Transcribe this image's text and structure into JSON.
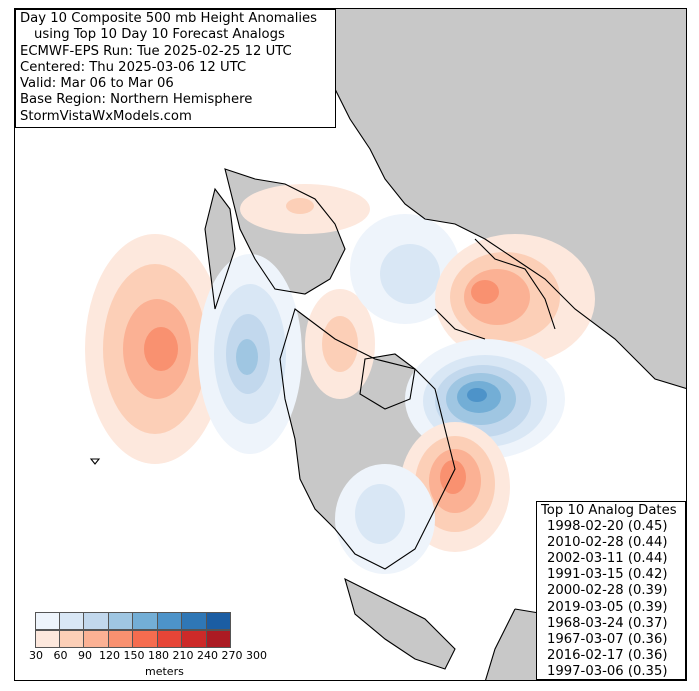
{
  "title": {
    "lines": [
      "Day 10 Composite 500 mb Height Anomalies",
      "using Top 10 Day 10 Forecast Analogs",
      "ECMWF-EPS Run: Tue 2025-02-25 12 UTC",
      "Centered: Thu 2025-03-06 12 UTC",
      "Valid: Mar 06 to Mar 06",
      "Base Region: Northern Hemisphere",
      "StormVistaWxModels.com"
    ]
  },
  "analogs": {
    "title": "Top 10 Analog Dates",
    "items": [
      "1998-02-20 (0.45)",
      "2010-02-28 (0.44)",
      "2002-03-11 (0.44)",
      "1991-03-15 (0.42)",
      "2000-02-28 (0.39)",
      "2019-03-05 (0.39)",
      "1968-03-24 (0.37)",
      "1967-03-07 (0.36)",
      "2016-02-17 (0.36)",
      "1997-03-06 (0.35)"
    ]
  },
  "legend": {
    "ticks": [
      "30",
      "60",
      "90",
      "120",
      "150",
      "180",
      "210",
      "240",
      "270",
      "300"
    ],
    "units": "meters",
    "blue_colors": [
      "#eef4fb",
      "#d9e7f5",
      "#c2d8ed",
      "#9fc6e2",
      "#73aed6",
      "#4d93c9",
      "#2f77b6",
      "#1b5da3",
      "#1a4681"
    ],
    "red_colors": [
      "#fde8dd",
      "#fccfb7",
      "#fbb194",
      "#f99170",
      "#f56c4f",
      "#e64537",
      "#cd2a29",
      "#ac1b23",
      "#8b141c"
    ]
  },
  "map": {
    "land_color": "#c8c8c8",
    "ocean_color": "#ffffff",
    "coast_color": "#000000"
  }
}
